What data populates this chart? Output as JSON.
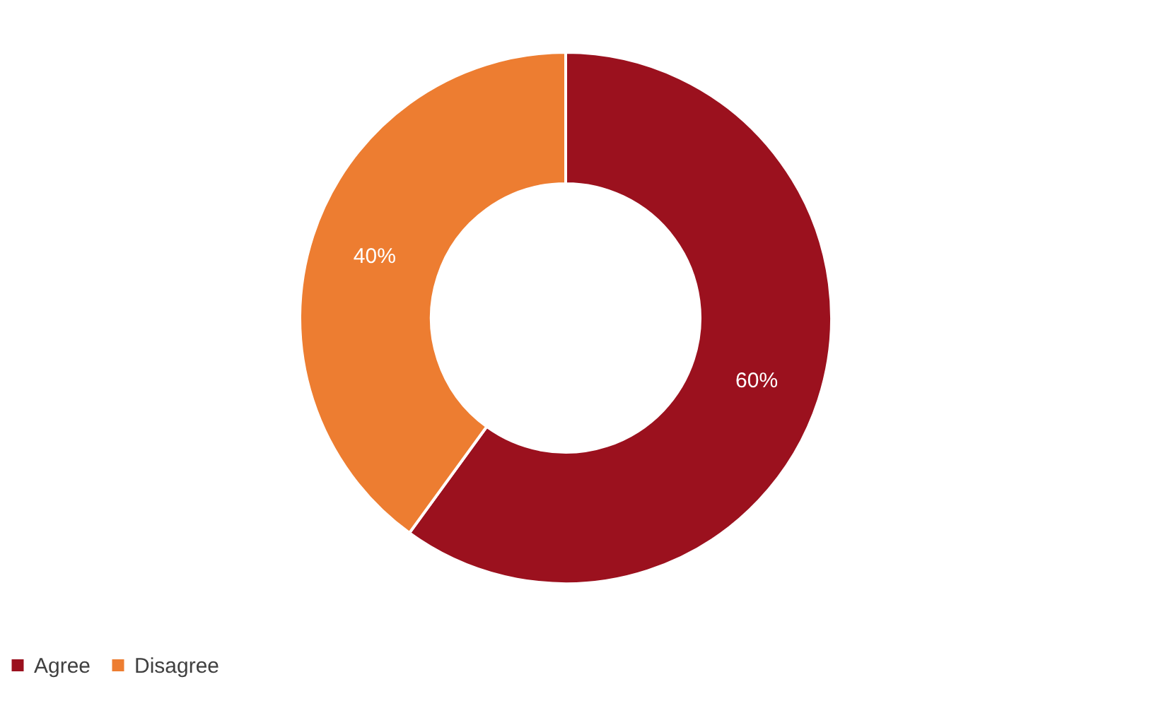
{
  "chart_data": {
    "type": "donut",
    "categories": [
      "Agree",
      "Disagree"
    ],
    "values": [
      60,
      40
    ],
    "colors": [
      "#9b111e",
      "#ed7d31"
    ],
    "value_labels": [
      "60%",
      "40%"
    ],
    "legend": "bottom"
  }
}
